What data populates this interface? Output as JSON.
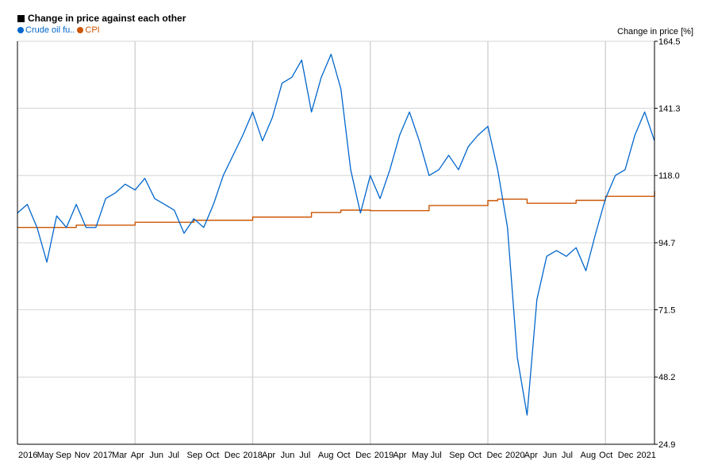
{
  "chart_data": {
    "type": "line",
    "title": "Change in price against each other",
    "ylabel": "Change in price [%]",
    "ylim": [
      24.9,
      164.5
    ],
    "y_ticks": [
      "164.5",
      "141.3",
      "118.0",
      "94.7",
      "71.5",
      "48.2",
      "24.9"
    ],
    "x_ticks": [
      "2016",
      "May",
      "Sep",
      "Nov",
      "2017",
      "Mar",
      "Apr",
      "Jun",
      "Jul",
      "Sep",
      "Oct",
      "Dec",
      "2018",
      "Apr",
      "Jun",
      "Jul",
      "Aug",
      "Oct",
      "Dec",
      "2019",
      "Apr",
      "May",
      "Jul",
      "Sep",
      "Oct",
      "Dec",
      "2020",
      "Apr",
      "Jun",
      "Jul",
      "Aug",
      "Oct",
      "Dec",
      "2021"
    ],
    "grid": true,
    "legend": "top-left",
    "x_range": [
      "2016-01",
      "2021-06"
    ],
    "series": [
      {
        "name": "Crude oil fu..",
        "color": "#0066cc",
        "x": [
          "2016-01",
          "2016-02",
          "2016-03",
          "2016-04",
          "2016-05",
          "2016-06",
          "2016-07",
          "2016-08",
          "2016-09",
          "2016-10",
          "2016-11",
          "2016-12",
          "2017-01",
          "2017-02",
          "2017-03",
          "2017-04",
          "2017-05",
          "2017-06",
          "2017-07",
          "2017-08",
          "2017-09",
          "2017-10",
          "2017-11",
          "2017-12",
          "2018-01",
          "2018-02",
          "2018-03",
          "2018-04",
          "2018-05",
          "2018-06",
          "2018-07",
          "2018-08",
          "2018-09",
          "2018-10",
          "2018-11",
          "2018-12",
          "2019-01",
          "2019-02",
          "2019-03",
          "2019-04",
          "2019-05",
          "2019-06",
          "2019-07",
          "2019-08",
          "2019-09",
          "2019-10",
          "2019-11",
          "2019-12",
          "2020-01",
          "2020-02",
          "2020-03",
          "2020-04",
          "2020-05",
          "2020-06",
          "2020-07",
          "2020-08",
          "2020-09",
          "2020-10",
          "2020-11",
          "2020-12",
          "2021-01",
          "2021-02",
          "2021-03",
          "2021-04",
          "2021-05",
          "2021-06"
        ],
        "values": [
          105,
          108,
          100,
          88,
          104,
          100,
          108,
          100,
          100,
          110,
          112,
          115,
          113,
          117,
          110,
          108,
          106,
          98,
          103,
          100,
          108,
          118,
          125,
          132,
          140,
          130,
          138,
          150,
          152,
          158,
          140,
          152,
          160,
          148,
          120,
          105,
          118,
          110,
          120,
          132,
          140,
          130,
          118,
          120,
          125,
          120,
          128,
          132,
          135,
          120,
          100,
          55,
          35,
          75,
          90,
          92,
          90,
          93,
          85,
          98,
          110,
          118,
          120,
          132,
          140,
          130
        ]
      },
      {
        "name": "CPI",
        "color": "#cc5500",
        "x": [
          "2016-01",
          "2016-07",
          "2017-01",
          "2017-07",
          "2018-01",
          "2018-07",
          "2018-10",
          "2019-01",
          "2019-07",
          "2020-01",
          "2020-02",
          "2020-05",
          "2020-10",
          "2021-01",
          "2021-06"
        ],
        "values": [
          100,
          100.8,
          101.8,
          102.5,
          103.6,
          105.2,
          106.0,
          105.8,
          107.6,
          109.3,
          109.8,
          108.4,
          109.4,
          110.8,
          112.6
        ]
      }
    ]
  }
}
